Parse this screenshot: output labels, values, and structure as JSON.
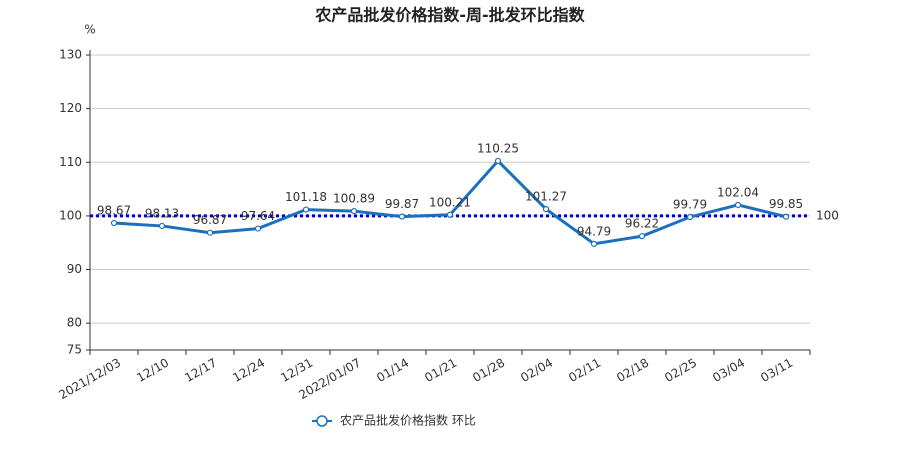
{
  "chart_data": {
    "type": "line",
    "title": "农产品批发价格指数-周-批发环比指数",
    "y_axis_unit": "%",
    "categories": [
      "2021/12/03",
      "12/10",
      "12/17",
      "12/24",
      "12/31",
      "2022/01/07",
      "01/14",
      "01/21",
      "01/28",
      "02/04",
      "02/11",
      "02/18",
      "02/25",
      "03/04",
      "03/11"
    ],
    "series": [
      {
        "name": "农产品批发价格指数  环比",
        "color": "#1a6fbf",
        "values": [
          98.67,
          98.13,
          96.87,
          97.64,
          101.18,
          100.89,
          99.87,
          100.21,
          110.25,
          101.27,
          94.79,
          96.22,
          99.79,
          102.04,
          99.85
        ]
      }
    ],
    "reference_line": {
      "value": 100,
      "color": "#0000cc"
    },
    "ylim": [
      75,
      130
    ],
    "yticks": [
      75,
      80,
      90,
      100,
      110,
      120,
      130
    ],
    "grid": true
  }
}
